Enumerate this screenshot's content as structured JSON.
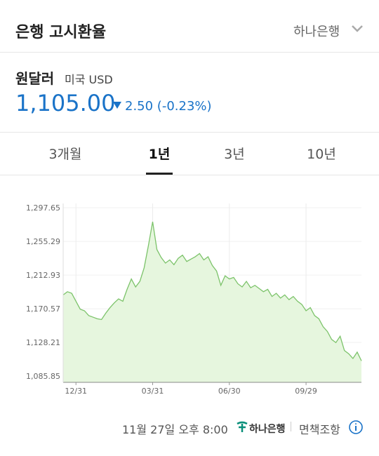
{
  "header": {
    "title": "은행 고시환율",
    "bank": "하나은행"
  },
  "quote": {
    "name": "원달러",
    "country": "미국 USD",
    "price": "1,105.00",
    "change": "2.50 (-0.23%)"
  },
  "tabs": [
    "3개월",
    "1년",
    "3년",
    "10년"
  ],
  "chart_data": {
    "type": "area",
    "color": "#7cc36a",
    "fill": "#e6f6de",
    "grid": true,
    "categories": [
      null,
      null,
      null,
      "12/31",
      null,
      null,
      null,
      null,
      null,
      null,
      null,
      null,
      null,
      null,
      null,
      null,
      null,
      null,
      null,
      null,
      null,
      "03/31",
      null,
      null,
      null,
      null,
      null,
      null,
      null,
      null,
      null,
      null,
      null,
      null,
      null,
      null,
      null,
      null,
      null,
      "06/30",
      null,
      null,
      null,
      null,
      null,
      null,
      null,
      null,
      null,
      null,
      null,
      null,
      null,
      null,
      null,
      null,
      null,
      "09/29",
      null,
      null,
      null,
      null,
      null,
      null,
      null,
      null,
      null,
      null,
      null,
      null,
      null
    ],
    "values": [
      1188,
      1192,
      1190,
      1180,
      1170,
      1168,
      1162,
      1160,
      1158,
      1157,
      1165,
      1172,
      1178,
      1183,
      1180,
      1195,
      1208,
      1198,
      1205,
      1222,
      1250,
      1280,
      1245,
      1235,
      1228,
      1232,
      1226,
      1234,
      1238,
      1230,
      1233,
      1236,
      1240,
      1232,
      1236,
      1225,
      1218,
      1200,
      1212,
      1208,
      1210,
      1202,
      1198,
      1205,
      1197,
      1200,
      1196,
      1192,
      1195,
      1186,
      1190,
      1184,
      1188,
      1182,
      1186,
      1180,
      1176,
      1168,
      1172,
      1162,
      1158,
      1148,
      1142,
      1132,
      1128,
      1136,
      1118,
      1114,
      1108,
      1116,
      1105
    ],
    "ylim": [
      1078,
      1303
    ],
    "yticks": [
      {
        "value": 1085.85,
        "label": "1,085.85"
      },
      {
        "value": 1128.21,
        "label": "1,128.21"
      },
      {
        "value": 1170.57,
        "label": "1,170.57"
      },
      {
        "value": 1212.93,
        "label": "1,212.93"
      },
      {
        "value": 1255.29,
        "label": "1,255.29"
      },
      {
        "value": 1297.65,
        "label": "1,297.65"
      }
    ]
  },
  "footer": {
    "timestamp": "11월 27일 오후 8:00",
    "logo": "하나은행",
    "disclaimer": "면책조항"
  }
}
